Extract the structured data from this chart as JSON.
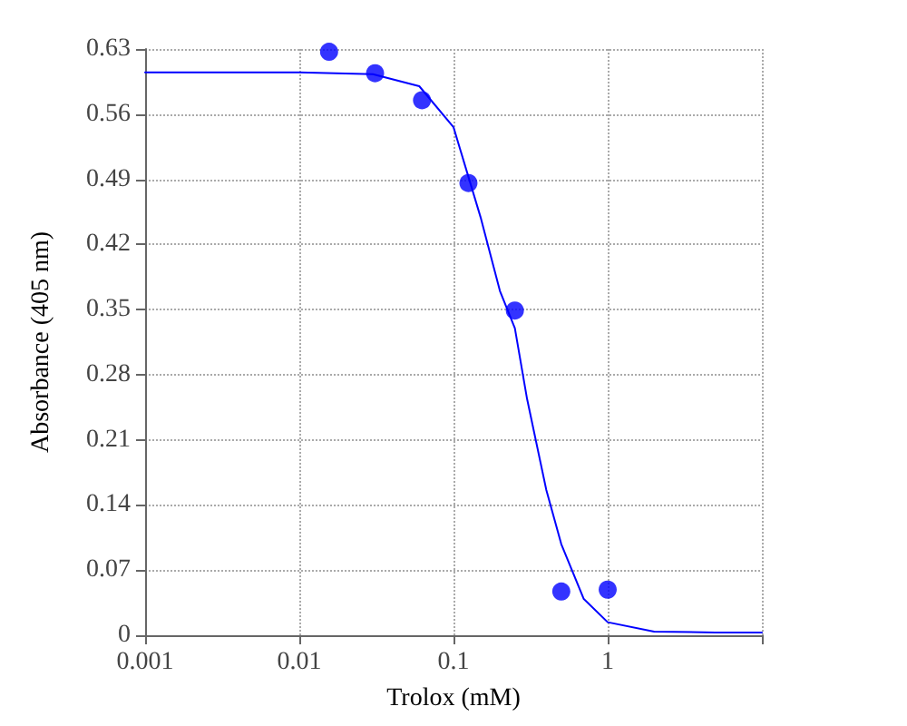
{
  "chart_data": {
    "type": "scatter",
    "xlabel": "Trolox (mM)",
    "ylabel": "Absorbance (405 nm)",
    "log": "x",
    "grid": true,
    "line_style": "dotted",
    "xlim": [
      0.001,
      10
    ],
    "xticks": [
      0.001,
      0.01,
      0.1,
      1,
      {
        "value": 10,
        "label": null
      }
    ],
    "ylim": [
      0,
      0.63
    ],
    "yticks": [
      0,
      0.07,
      0.14,
      0.21,
      0.28,
      0.35,
      0.42,
      0.49,
      0.56,
      0.63
    ],
    "series": [
      {
        "type": "scatter",
        "marker": "circle",
        "color": "#0000ff",
        "x": [
          0.0156,
          0.031,
          0.0625,
          0.125,
          0.25,
          0.5,
          1
        ],
        "values": [
          0.627,
          0.604,
          0.575,
          0.486,
          0.349,
          0.047,
          0.049
        ]
      },
      {
        "type": "line",
        "marker": "none",
        "line_style": "solid",
        "color": "#0000ff",
        "x": [
          0.001,
          0.01,
          0.03,
          0.06,
          0.1,
          0.15,
          0.2,
          0.25,
          0.3,
          0.4,
          0.5,
          0.7,
          1,
          2,
          5,
          10
        ],
        "values": [
          0.605,
          0.605,
          0.603,
          0.59,
          0.546,
          0.449,
          0.37,
          0.33,
          0.254,
          0.156,
          0.098,
          0.039,
          0.014,
          0.004,
          0.003,
          0.003
        ]
      }
    ]
  }
}
